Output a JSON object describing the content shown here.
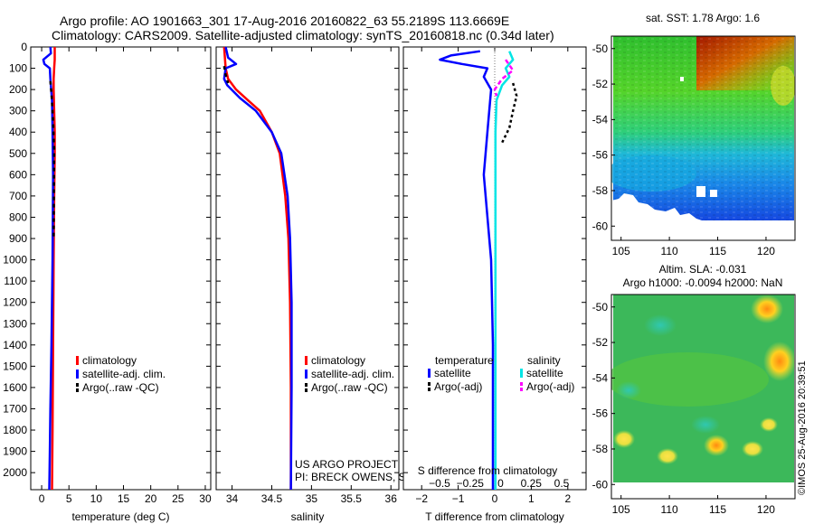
{
  "header": {
    "title_line1": "Argo profile: AO 1901663_301 17-Aug-2016 20160822_63 55.2189S 113.6669E",
    "title_line2": "Climatology: CARS2009. Satellite-adjusted climatology: synTS_20160818.nc (0.34d later)"
  },
  "colors": {
    "climatology": "#ff0000",
    "satellite": "#0000ff",
    "argo": "#000000",
    "salinity_satellite": "#00e5e5",
    "salinity_argo": "#ff00ff"
  },
  "chart_data": [
    {
      "type": "line",
      "id": "temperature",
      "xlabel": "temperature (deg C)",
      "ylabel": "",
      "xlim": [
        -2,
        31
      ],
      "ylim": [
        2080,
        0
      ],
      "xticks": [
        "0",
        "5",
        "10",
        "15",
        "20",
        "25",
        "30"
      ],
      "xtick_values": [
        0,
        5,
        10,
        15,
        20,
        25,
        30
      ],
      "yticks": [
        "0",
        "100",
        "200",
        "300",
        "400",
        "500",
        "600",
        "700",
        "800",
        "900",
        "1000",
        "1100",
        "1200",
        "1300",
        "1400",
        "1500",
        "1600",
        "1700",
        "1800",
        "1900",
        "2000"
      ],
      "ytick_values": [
        0,
        100,
        200,
        300,
        400,
        500,
        600,
        700,
        800,
        900,
        1000,
        1100,
        1200,
        1300,
        1400,
        1500,
        1600,
        1700,
        1800,
        1900,
        2000
      ],
      "legend": [
        "climatology",
        "satellite-adj. clim.",
        "Argo(..raw -QC)"
      ],
      "series": [
        {
          "name": "climatology",
          "color": "#ff0000",
          "dash": "",
          "x": [
            2.4,
            2.4,
            2.3,
            2.2,
            2.2,
            2.3,
            2.4,
            2.4,
            2.3,
            2.2,
            2.1,
            2.0,
            1.9
          ],
          "y": [
            0,
            60,
            100,
            150,
            200,
            300,
            400,
            500,
            700,
            1000,
            1400,
            1800,
            2080
          ]
        },
        {
          "name": "satellite-adj. clim.",
          "color": "#0000ff",
          "dash": "",
          "x": [
            1.6,
            1.7,
            0.3,
            0.5,
            1.5,
            1.6,
            1.9,
            2.0,
            2.1,
            2.0,
            1.8,
            1.6,
            1.5,
            1.4
          ],
          "y": [
            0,
            30,
            60,
            80,
            100,
            150,
            250,
            400,
            600,
            1000,
            1400,
            1700,
            1900,
            2080
          ]
        },
        {
          "name": "Argo(..raw -QC)",
          "color": "#000000",
          "dash": "4,4",
          "x": [
            1.6,
            1.8,
            2.0,
            2.1,
            2.2,
            2.3,
            2.2
          ],
          "y": [
            160,
            220,
            300,
            350,
            420,
            480,
            900
          ]
        }
      ]
    },
    {
      "type": "line",
      "id": "salinity",
      "xlabel": "salinity",
      "xlim": [
        33.8,
        36.1
      ],
      "ylim": [
        2080,
        0
      ],
      "xticks": [
        "34",
        "34.5",
        "35",
        "35.5",
        "36"
      ],
      "xtick_values": [
        34,
        34.5,
        35,
        35.5,
        36
      ],
      "legend": [
        "climatology",
        "satellite-adj. clim.",
        "Argo(..raw -QC)"
      ],
      "annotations": [
        "US ARGO PROJECT",
        "PI: BRECK OWENS, STEVE JAYNE, P.E. ROBBINS"
      ],
      "series": [
        {
          "name": "climatology",
          "color": "#ff0000",
          "dash": "",
          "x": [
            33.9,
            33.92,
            33.95,
            34.05,
            34.2,
            34.35,
            34.5,
            34.6,
            34.67,
            34.71,
            34.73,
            34.74,
            34.74
          ],
          "y": [
            0,
            100,
            150,
            200,
            250,
            300,
            400,
            500,
            700,
            900,
            1200,
            1600,
            2080
          ]
        },
        {
          "name": "satellite-adj. clim.",
          "color": "#0000ff",
          "dash": "",
          "x": [
            33.92,
            33.95,
            34.05,
            33.92,
            33.9,
            33.94,
            34.1,
            34.3,
            34.5,
            34.62,
            34.7,
            34.73,
            34.75,
            34.75,
            34.74
          ],
          "y": [
            0,
            50,
            80,
            100,
            150,
            180,
            240,
            300,
            400,
            500,
            700,
            900,
            1200,
            1600,
            2080
          ]
        },
        {
          "name": "Argo(..raw -QC)",
          "color": "#000000",
          "dash": "4,4",
          "x": [
            33.9,
            33.92,
            33.95
          ],
          "y": [
            90,
            130,
            170
          ]
        }
      ]
    },
    {
      "type": "line",
      "id": "differences",
      "xlabel": "T difference from climatology",
      "xlabel_top": "S difference from climatology",
      "xlim": [
        -2.5,
        2.5
      ],
      "ylim": [
        2080,
        0
      ],
      "xticks": [
        "−2",
        "−1",
        "0",
        "1",
        "2"
      ],
      "xtick_values": [
        -2,
        -1,
        0,
        1,
        2
      ],
      "xticks_top": [
        "−0.5",
        "−0.25",
        "0",
        "0.25",
        "0.5"
      ],
      "xtick_values_top": [
        -0.5,
        -0.25,
        0,
        0.25,
        0.5
      ],
      "legend_headers": [
        "temperature",
        "salinity"
      ],
      "legend": [
        "satellite",
        "Argo(-adj)",
        "satellite",
        "Argo(-adj)"
      ],
      "series": [
        {
          "name": "temperature satellite",
          "color": "#0000ff",
          "dash": "",
          "x": [
            -0.4,
            -1.2,
            -1.5,
            -0.9,
            -0.2,
            -0.3,
            -0.1,
            -0.2,
            -0.3,
            -0.1,
            -0.05,
            -0.05,
            -0.05
          ],
          "y": [
            20,
            40,
            60,
            80,
            100,
            140,
            200,
            400,
            600,
            1000,
            1400,
            1800,
            2080
          ]
        },
        {
          "name": "temperature Argo(-adj)",
          "color": "#000000",
          "dash": "3,3",
          "x": [
            0.5,
            0.6,
            0.5,
            0.4,
            0.2
          ],
          "y": [
            170,
            230,
            300,
            380,
            450
          ]
        },
        {
          "name": "salinity satellite",
          "color": "#00e5e5",
          "dash": "",
          "x": [
            0.4,
            0.5,
            0.3,
            0.4,
            0.2,
            0.05,
            0.02,
            0.02,
            0.02,
            0.02
          ],
          "y": [
            20,
            60,
            100,
            140,
            180,
            250,
            400,
            800,
            1400,
            2080
          ]
        },
        {
          "name": "salinity Argo(-adj)",
          "color": "#ff00ff",
          "dash": "5,3",
          "x": [
            0.3,
            0.5,
            0.2,
            0.0,
            0.05
          ],
          "y": [
            60,
            110,
            150,
            200,
            230
          ]
        }
      ]
    },
    {
      "type": "heatmap",
      "id": "sst-map",
      "title": "sat. SST: 1.78 Argo: 1.6",
      "xlim": [
        104,
        123
      ],
      "ylim": [
        -60.8,
        -49.3
      ],
      "xticks": [
        "105",
        "110",
        "115",
        "120"
      ],
      "xtick_values": [
        105,
        110,
        115,
        120
      ],
      "yticks": [
        "-50",
        "-52",
        "-54",
        "-56",
        "-58",
        "-60"
      ],
      "ytick_values": [
        -50,
        -52,
        -54,
        -56,
        -58,
        -60
      ]
    },
    {
      "type": "heatmap",
      "id": "sla-map",
      "title_line1": "Altim. SLA: -0.031",
      "title_line2": "Argo h1000: -0.0094 h2000: NaN",
      "xlim": [
        104,
        123
      ],
      "ylim": [
        -60.8,
        -49.3
      ],
      "xticks": [
        "105",
        "110",
        "115",
        "120"
      ],
      "xtick_values": [
        105,
        110,
        115,
        120
      ],
      "yticks": [
        "-50",
        "-52",
        "-54",
        "-56",
        "-58",
        "-60"
      ],
      "ytick_values": [
        -50,
        -52,
        -54,
        -56,
        -58,
        -60
      ]
    }
  ],
  "footer": {
    "credit": "©IMOS 25-Aug-2016 20:39:51"
  }
}
